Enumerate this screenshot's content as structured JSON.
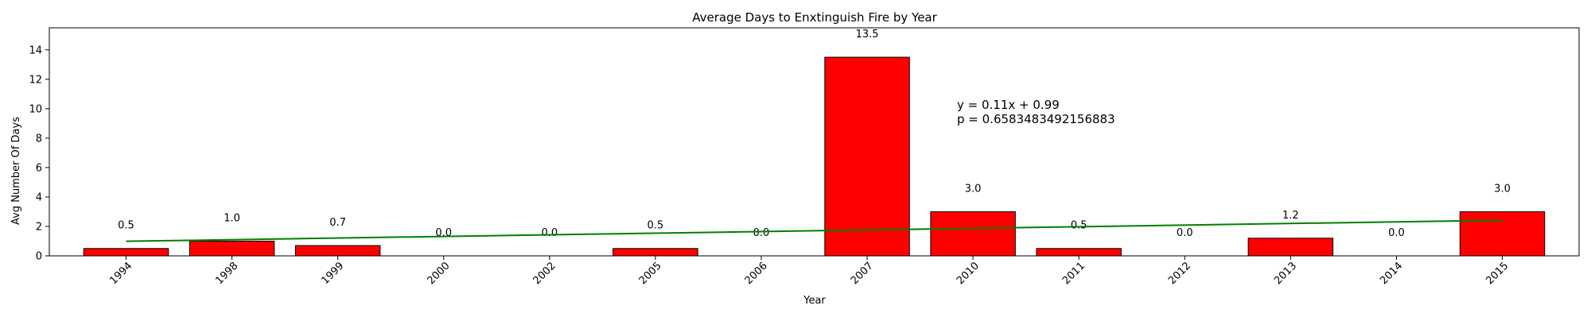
{
  "chart_data": {
    "type": "bar",
    "title": "Average Days to Enxtinguish Fire by Year",
    "xlabel": "Year",
    "ylabel": "Avg Number Of Days",
    "categories": [
      "1994",
      "1998",
      "1999",
      "2000",
      "2002",
      "2005",
      "2006",
      "2007",
      "2010",
      "2011",
      "2012",
      "2013",
      "2014",
      "2015"
    ],
    "values": [
      0.5,
      1.0,
      0.7,
      0.0,
      0.0,
      0.5,
      0.0,
      13.5,
      3.0,
      0.5,
      0.0,
      1.2,
      0.0,
      3.0
    ],
    "value_labels": [
      "0.5",
      "1.0",
      "0.7",
      "0.0",
      "0.0",
      "0.5",
      "0.0",
      "13.5",
      "3.0",
      "0.5",
      "0.0",
      "1.2",
      "0.0",
      "3.0"
    ],
    "ylim": [
      0,
      15.5
    ],
    "yticks": [
      0,
      2,
      4,
      6,
      8,
      10,
      12,
      14
    ],
    "grid": false,
    "bar_color": "#ff0000",
    "bar_edge_color": "#000000",
    "trendline": {
      "color": "#008000",
      "slope": 0.11,
      "intercept": 0.99,
      "equation_text": "y = 0.11x + 0.99",
      "p_text": "p = 0.6583483492156883",
      "p_color": "#0000ff"
    }
  }
}
